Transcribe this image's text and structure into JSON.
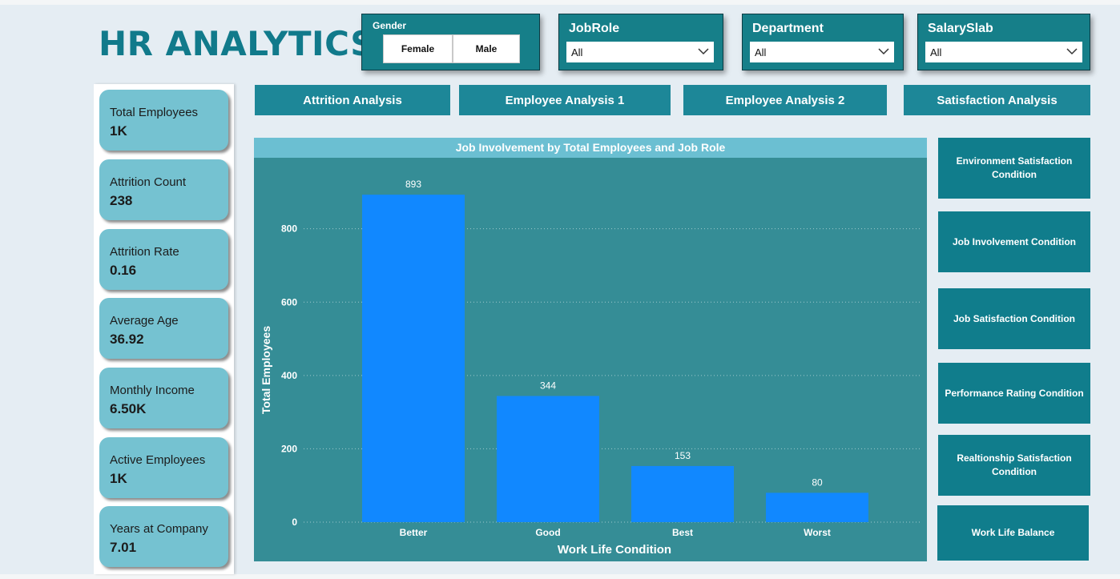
{
  "header": {
    "title": "HR ANALYTICS"
  },
  "filters": {
    "gender": {
      "label": "Gender",
      "options": [
        "Female",
        "Male"
      ]
    },
    "jobrole": {
      "label": "JobRole",
      "value": "All"
    },
    "department": {
      "label": "Department",
      "value": "All"
    },
    "salaryslab": {
      "label": "SalarySlab",
      "value": "All"
    }
  },
  "kpis": [
    {
      "label": "Total Employees",
      "value": "1K"
    },
    {
      "label": "Attrition Count",
      "value": "238"
    },
    {
      "label": "Attrition Rate",
      "value": "0.16"
    },
    {
      "label": "Average Age",
      "value": "36.92"
    },
    {
      "label": "Monthly Income",
      "value": "6.50K"
    },
    {
      "label": "Active Employees",
      "value": "1K"
    },
    {
      "label": "Years at Company",
      "value": "7.01"
    }
  ],
  "nav": {
    "tabs": [
      "Attrition Analysis",
      "Employee Analysis 1",
      "Employee Analysis 2",
      "Satisfaction Analysis"
    ]
  },
  "side_buttons": [
    "Environment Satisfaction Condition",
    "Job Involvement Condition",
    "Job Satisfaction Condition",
    "Performance Rating Condition",
    "Realtionship Satisfaction Condition",
    "Work Life Balance"
  ],
  "colors": {
    "bar": "#1188ff",
    "plot_bg": "#358d96",
    "title_bg": "#6bbfd2"
  },
  "chart_data": {
    "type": "bar",
    "title": "Job Involvement by Total Employees and Job Role",
    "xlabel": "Work Life Condition",
    "ylabel": "Total Employees",
    "categories": [
      "Better",
      "Good",
      "Best",
      "Worst"
    ],
    "values": [
      893,
      344,
      153,
      80
    ],
    "data_labels": [
      "893",
      "344",
      "153",
      "80"
    ],
    "ylim": [
      0,
      950
    ],
    "yticks": [
      0,
      200,
      400,
      600,
      800
    ],
    "grid": true
  }
}
